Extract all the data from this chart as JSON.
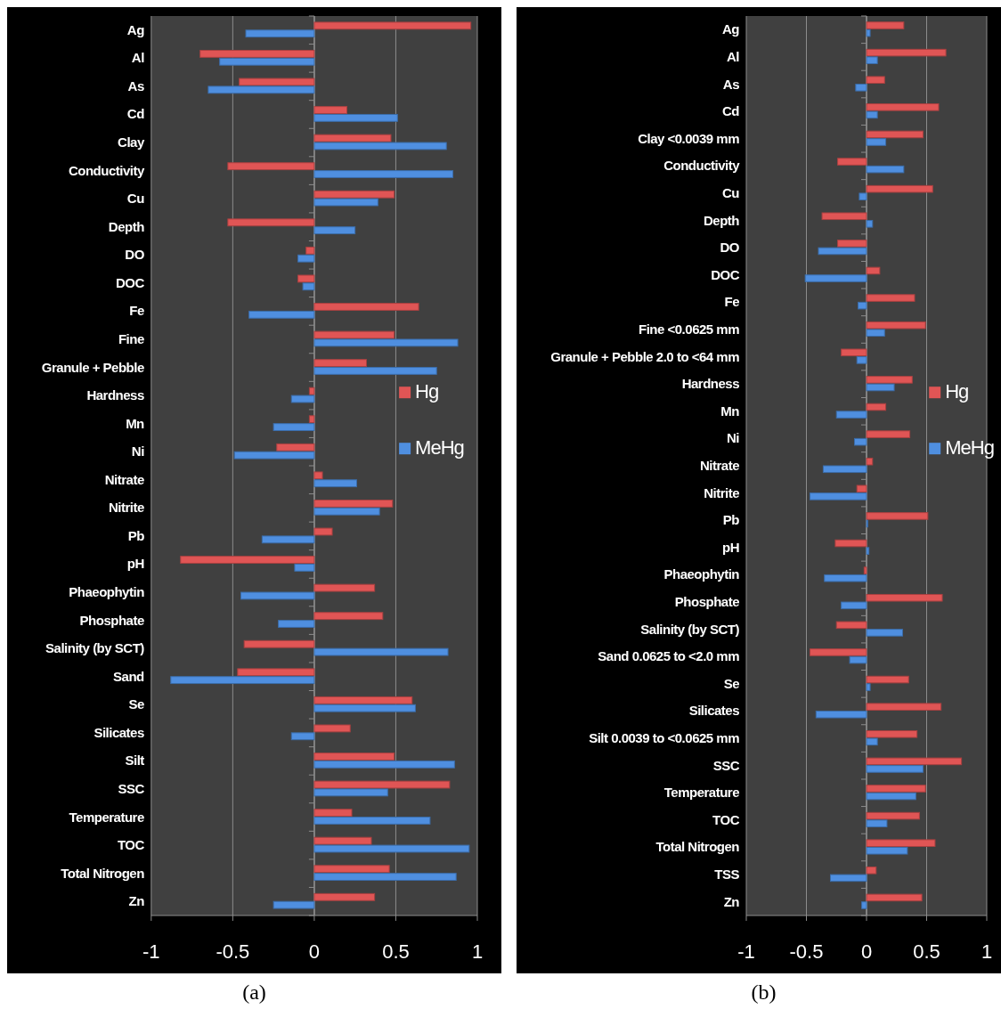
{
  "chart_data": [
    {
      "type": "bar",
      "orientation": "horizontal",
      "categories": [
        "Ag",
        "Al",
        "As",
        "Cd",
        "Clay",
        "Conductivity",
        "Cu",
        "Depth",
        "DO",
        "DOC",
        "Fe",
        "Fine",
        "Granule + Pebble",
        "Hardness",
        "Mn",
        "Ni",
        "Nitrate",
        "Nitrite",
        "Pb",
        "pH",
        "Phaeophytin",
        "Phosphate",
        "Salinity (by SCT)",
        "Sand",
        "Se",
        "Silicates",
        "Silt",
        "SSC",
        "Temperature",
        "TOC",
        "Total Nitrogen",
        "Zn"
      ],
      "series": [
        {
          "name": "Hg",
          "color": "#e05555",
          "values": [
            0.96,
            -0.7,
            -0.46,
            0.2,
            0.47,
            -0.53,
            0.49,
            -0.53,
            -0.05,
            -0.1,
            0.64,
            0.49,
            0.32,
            -0.03,
            -0.03,
            -0.23,
            0.05,
            0.48,
            0.11,
            -0.82,
            0.37,
            0.42,
            -0.43,
            -0.47,
            0.6,
            0.22,
            0.49,
            0.83,
            0.23,
            0.35,
            0.46,
            0.37
          ]
        },
        {
          "name": "MeHg",
          "color": "#4f8fe0",
          "values": [
            -0.42,
            -0.58,
            -0.65,
            0.51,
            0.81,
            0.85,
            0.39,
            0.25,
            -0.1,
            -0.07,
            -0.4,
            0.88,
            0.75,
            -0.14,
            -0.25,
            -0.49,
            0.26,
            0.4,
            -0.32,
            -0.12,
            -0.45,
            -0.22,
            0.82,
            -0.88,
            0.62,
            -0.14,
            0.86,
            0.45,
            0.71,
            0.95,
            0.87,
            -0.25
          ]
        }
      ],
      "xlim": [
        -1,
        1
      ],
      "xticks": [
        -1,
        -0.5,
        0,
        0.5,
        1
      ],
      "grid": "x",
      "legend": "right",
      "annotations": [
        "(a)"
      ]
    },
    {
      "type": "bar",
      "orientation": "horizontal",
      "categories": [
        "Ag",
        "Al",
        "As",
        "Cd",
        "Clay <0.0039 mm",
        "Conductivity",
        "Cu",
        "Depth",
        "DO",
        "DOC",
        "Fe",
        "Fine <0.0625 mm",
        "Granule + Pebble 2.0 to <64 mm",
        "Hardness",
        "Mn",
        "Ni",
        "Nitrate",
        "Nitrite",
        "Pb",
        "pH",
        "Phaeophytin",
        "Phosphate",
        "Salinity (by SCT)",
        "Sand 0.0625 to <2.0 mm",
        "Se",
        "Silicates",
        "Silt 0.0039 to <0.0625 mm",
        "SSC",
        "Temperature",
        "TOC",
        "Total Nitrogen",
        "TSS",
        "Zn"
      ],
      "series": [
        {
          "name": "Hg",
          "color": "#e05555",
          "values": [
            0.31,
            0.66,
            0.15,
            0.6,
            0.47,
            -0.24,
            0.55,
            -0.37,
            -0.24,
            0.11,
            0.4,
            0.49,
            -0.21,
            0.38,
            0.16,
            0.36,
            0.05,
            -0.08,
            0.51,
            -0.26,
            -0.02,
            0.63,
            -0.25,
            -0.47,
            0.35,
            0.62,
            0.42,
            0.79,
            0.49,
            0.44,
            0.57,
            0.08,
            0.46
          ]
        },
        {
          "name": "MeHg",
          "color": "#4f8fe0",
          "values": [
            0.03,
            0.09,
            -0.09,
            0.09,
            0.16,
            0.31,
            -0.06,
            0.05,
            -0.4,
            -0.51,
            -0.07,
            0.15,
            -0.08,
            0.23,
            -0.25,
            -0.1,
            -0.36,
            -0.47,
            0.01,
            0.02,
            -0.35,
            -0.21,
            0.3,
            -0.14,
            0.03,
            -0.42,
            0.09,
            0.47,
            0.41,
            0.17,
            0.34,
            -0.3,
            -0.04
          ]
        }
      ],
      "xlim": [
        -1,
        1
      ],
      "xticks": [
        -1,
        -0.5,
        0,
        0.5,
        1
      ],
      "grid": "x",
      "legend": "right",
      "annotations": [
        "(b)"
      ]
    }
  ]
}
